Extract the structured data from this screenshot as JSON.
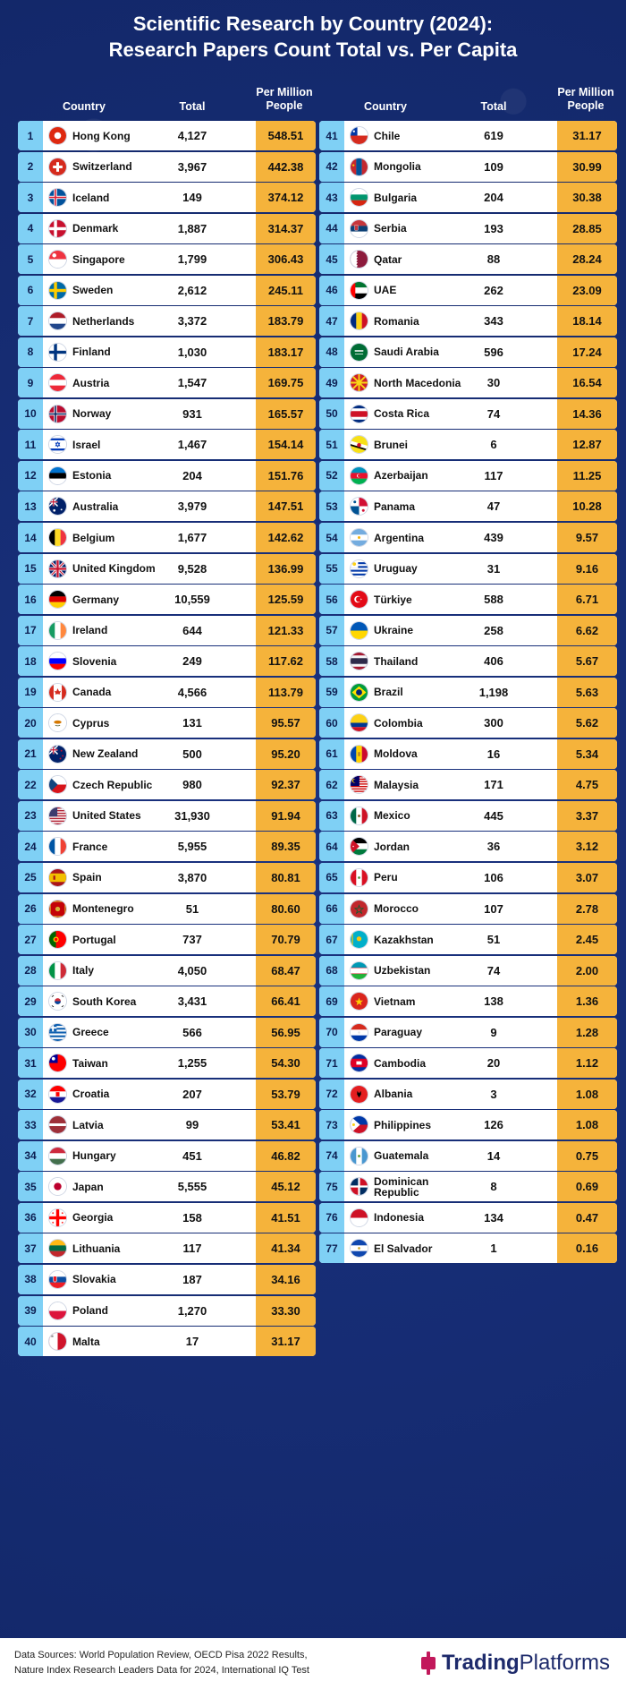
{
  "header": {
    "title_line1": "Scientific Research by Country (2024):",
    "title_line2": "Research Papers Count Total vs. Per Capita",
    "col_country": "Country",
    "col_total": "Total",
    "col_pm_line1": "Per Million",
    "col_pm_line2": "People"
  },
  "footer": {
    "sources_line1": "Data Sources: World Population Review, OECD Pisa 2022 Results,",
    "sources_line2": "Nature Index Research Leaders Data for 2024, International IQ Test",
    "brand_bold": "Trading",
    "brand_regular": "Platforms"
  },
  "colors": {
    "background": "#162c73",
    "rank_bg": "#7fd0f5",
    "per_million_bg": "#f5b33b",
    "brand_accent": "#c2185b"
  },
  "chart_data": {
    "type": "table",
    "title": "Scientific Research by Country (2024): Research Papers Count Total vs. Per Capita",
    "columns": [
      "Country",
      "Total",
      "Per Million People"
    ],
    "rows": [
      {
        "rank": "1",
        "country": "Hong Kong",
        "total": "4,127",
        "per_million": "548.51",
        "flag": "hongkong"
      },
      {
        "rank": "2",
        "country": "Switzerland",
        "total": "3,967",
        "per_million": "442.38",
        "flag": "switzerland"
      },
      {
        "rank": "3",
        "country": "Iceland",
        "total": "149",
        "per_million": "374.12",
        "flag": "iceland"
      },
      {
        "rank": "4",
        "country": "Denmark",
        "total": "1,887",
        "per_million": "314.37",
        "flag": "denmark"
      },
      {
        "rank": "5",
        "country": "Singapore",
        "total": "1,799",
        "per_million": "306.43",
        "flag": "singapore"
      },
      {
        "rank": "6",
        "country": "Sweden",
        "total": "2,612",
        "per_million": "245.11",
        "flag": "sweden"
      },
      {
        "rank": "7",
        "country": "Netherlands",
        "total": "3,372",
        "per_million": "183.79",
        "flag": "netherlands"
      },
      {
        "rank": "8",
        "country": "Finland",
        "total": "1,030",
        "per_million": "183.17",
        "flag": "finland"
      },
      {
        "rank": "9",
        "country": "Austria",
        "total": "1,547",
        "per_million": "169.75",
        "flag": "austria"
      },
      {
        "rank": "10",
        "country": "Norway",
        "total": "931",
        "per_million": "165.57",
        "flag": "norway"
      },
      {
        "rank": "11",
        "country": "Israel",
        "total": "1,467",
        "per_million": "154.14",
        "flag": "israel"
      },
      {
        "rank": "12",
        "country": "Estonia",
        "total": "204",
        "per_million": "151.76",
        "flag": "estonia"
      },
      {
        "rank": "13",
        "country": "Australia",
        "total": "3,979",
        "per_million": "147.51",
        "flag": "australia"
      },
      {
        "rank": "14",
        "country": "Belgium",
        "total": "1,677",
        "per_million": "142.62",
        "flag": "belgium"
      },
      {
        "rank": "15",
        "country": "United Kingdom",
        "total": "9,528",
        "per_million": "136.99",
        "flag": "uk"
      },
      {
        "rank": "16",
        "country": "Germany",
        "total": "10,559",
        "per_million": "125.59",
        "flag": "germany"
      },
      {
        "rank": "17",
        "country": "Ireland",
        "total": "644",
        "per_million": "121.33",
        "flag": "ireland"
      },
      {
        "rank": "18",
        "country": "Slovenia",
        "total": "249",
        "per_million": "117.62",
        "flag": "slovenia"
      },
      {
        "rank": "19",
        "country": "Canada",
        "total": "4,566",
        "per_million": "113.79",
        "flag": "canada"
      },
      {
        "rank": "20",
        "country": "Cyprus",
        "total": "131",
        "per_million": "95.57",
        "flag": "cyprus"
      },
      {
        "rank": "21",
        "country": "New Zealand",
        "total": "500",
        "per_million": "95.20",
        "flag": "newzealand"
      },
      {
        "rank": "22",
        "country": "Czech Republic",
        "total": "980",
        "per_million": "92.37",
        "flag": "czech"
      },
      {
        "rank": "23",
        "country": "United States",
        "total": "31,930",
        "per_million": "91.94",
        "flag": "usa"
      },
      {
        "rank": "24",
        "country": "France",
        "total": "5,955",
        "per_million": "89.35",
        "flag": "france"
      },
      {
        "rank": "25",
        "country": "Spain",
        "total": "3,870",
        "per_million": "80.81",
        "flag": "spain"
      },
      {
        "rank": "26",
        "country": "Montenegro",
        "total": "51",
        "per_million": "80.60",
        "flag": "montenegro"
      },
      {
        "rank": "27",
        "country": "Portugal",
        "total": "737",
        "per_million": "70.79",
        "flag": "portugal"
      },
      {
        "rank": "28",
        "country": "Italy",
        "total": "4,050",
        "per_million": "68.47",
        "flag": "italy"
      },
      {
        "rank": "29",
        "country": "South Korea",
        "total": "3,431",
        "per_million": "66.41",
        "flag": "southkorea"
      },
      {
        "rank": "30",
        "country": "Greece",
        "total": "566",
        "per_million": "56.95",
        "flag": "greece"
      },
      {
        "rank": "31",
        "country": "Taiwan",
        "total": "1,255",
        "per_million": "54.30",
        "flag": "taiwan"
      },
      {
        "rank": "32",
        "country": "Croatia",
        "total": "207",
        "per_million": "53.79",
        "flag": "croatia"
      },
      {
        "rank": "33",
        "country": "Latvia",
        "total": "99",
        "per_million": "53.41",
        "flag": "latvia"
      },
      {
        "rank": "34",
        "country": "Hungary",
        "total": "451",
        "per_million": "46.82",
        "flag": "hungary"
      },
      {
        "rank": "35",
        "country": "Japan",
        "total": "5,555",
        "per_million": "45.12",
        "flag": "japan"
      },
      {
        "rank": "36",
        "country": "Georgia",
        "total": "158",
        "per_million": "41.51",
        "flag": "georgia"
      },
      {
        "rank": "37",
        "country": "Lithuania",
        "total": "117",
        "per_million": "41.34",
        "flag": "lithuania"
      },
      {
        "rank": "38",
        "country": "Slovakia",
        "total": "187",
        "per_million": "34.16",
        "flag": "slovakia"
      },
      {
        "rank": "39",
        "country": "Poland",
        "total": "1,270",
        "per_million": "33.30",
        "flag": "poland"
      },
      {
        "rank": "40",
        "country": "Malta",
        "total": "17",
        "per_million": "31.17",
        "flag": "malta"
      },
      {
        "rank": "41",
        "country": "Chile",
        "total": "619",
        "per_million": "31.17",
        "flag": "chile"
      },
      {
        "rank": "42",
        "country": "Mongolia",
        "total": "109",
        "per_million": "30.99",
        "flag": "mongolia"
      },
      {
        "rank": "43",
        "country": "Bulgaria",
        "total": "204",
        "per_million": "30.38",
        "flag": "bulgaria"
      },
      {
        "rank": "44",
        "country": "Serbia",
        "total": "193",
        "per_million": "28.85",
        "flag": "serbia"
      },
      {
        "rank": "45",
        "country": "Qatar",
        "total": "88",
        "per_million": "28.24",
        "flag": "qatar"
      },
      {
        "rank": "46",
        "country": "UAE",
        "total": "262",
        "per_million": "23.09",
        "flag": "uae"
      },
      {
        "rank": "47",
        "country": "Romania",
        "total": "343",
        "per_million": "18.14",
        "flag": "romania"
      },
      {
        "rank": "48",
        "country": "Saudi Arabia",
        "total": "596",
        "per_million": "17.24",
        "flag": "saudi"
      },
      {
        "rank": "49",
        "country": "North Macedonia",
        "total": "30",
        "per_million": "16.54",
        "flag": "macedonia"
      },
      {
        "rank": "50",
        "country": "Costa Rica",
        "total": "74",
        "per_million": "14.36",
        "flag": "costarica"
      },
      {
        "rank": "51",
        "country": "Brunei",
        "total": "6",
        "per_million": "12.87",
        "flag": "brunei"
      },
      {
        "rank": "52",
        "country": "Azerbaijan",
        "total": "117",
        "per_million": "11.25",
        "flag": "azerbaijan"
      },
      {
        "rank": "53",
        "country": "Panama",
        "total": "47",
        "per_million": "10.28",
        "flag": "panama"
      },
      {
        "rank": "54",
        "country": "Argentina",
        "total": "439",
        "per_million": "9.57",
        "flag": "argentina"
      },
      {
        "rank": "55",
        "country": "Uruguay",
        "total": "31",
        "per_million": "9.16",
        "flag": "uruguay"
      },
      {
        "rank": "56",
        "country": "Türkiye",
        "total": "588",
        "per_million": "6.71",
        "flag": "turkey"
      },
      {
        "rank": "57",
        "country": "Ukraine",
        "total": "258",
        "per_million": "6.62",
        "flag": "ukraine"
      },
      {
        "rank": "58",
        "country": "Thailand",
        "total": "406",
        "per_million": "5.67",
        "flag": "thailand"
      },
      {
        "rank": "59",
        "country": "Brazil",
        "total": "1,198",
        "per_million": "5.63",
        "flag": "brazil"
      },
      {
        "rank": "60",
        "country": "Colombia",
        "total": "300",
        "per_million": "5.62",
        "flag": "colombia"
      },
      {
        "rank": "61",
        "country": "Moldova",
        "total": "16",
        "per_million": "5.34",
        "flag": "moldova"
      },
      {
        "rank": "62",
        "country": "Malaysia",
        "total": "171",
        "per_million": "4.75",
        "flag": "malaysia"
      },
      {
        "rank": "63",
        "country": "Mexico",
        "total": "445",
        "per_million": "3.37",
        "flag": "mexico"
      },
      {
        "rank": "64",
        "country": "Jordan",
        "total": "36",
        "per_million": "3.12",
        "flag": "jordan"
      },
      {
        "rank": "65",
        "country": "Peru",
        "total": "106",
        "per_million": "3.07",
        "flag": "peru"
      },
      {
        "rank": "66",
        "country": "Morocco",
        "total": "107",
        "per_million": "2.78",
        "flag": "morocco"
      },
      {
        "rank": "67",
        "country": "Kazakhstan",
        "total": "51",
        "per_million": "2.45",
        "flag": "kazakhstan"
      },
      {
        "rank": "68",
        "country": "Uzbekistan",
        "total": "74",
        "per_million": "2.00",
        "flag": "uzbekistan"
      },
      {
        "rank": "69",
        "country": "Vietnam",
        "total": "138",
        "per_million": "1.36",
        "flag": "vietnam"
      },
      {
        "rank": "70",
        "country": "Paraguay",
        "total": "9",
        "per_million": "1.28",
        "flag": "paraguay"
      },
      {
        "rank": "71",
        "country": "Cambodia",
        "total": "20",
        "per_million": "1.12",
        "flag": "cambodia"
      },
      {
        "rank": "72",
        "country": "Albania",
        "total": "3",
        "per_million": "1.08",
        "flag": "albania"
      },
      {
        "rank": "73",
        "country": "Philippines",
        "total": "126",
        "per_million": "1.08",
        "flag": "philippines"
      },
      {
        "rank": "74",
        "country": "Guatemala",
        "total": "14",
        "per_million": "0.75",
        "flag": "guatemala"
      },
      {
        "rank": "75",
        "country": "Dominican Republic",
        "total": "8",
        "per_million": "0.69",
        "flag": "dominican"
      },
      {
        "rank": "76",
        "country": "Indonesia",
        "total": "134",
        "per_million": "0.47",
        "flag": "indonesia"
      },
      {
        "rank": "77",
        "country": "El Salvador",
        "total": "1",
        "per_million": "0.16",
        "flag": "elsalvador"
      }
    ]
  }
}
